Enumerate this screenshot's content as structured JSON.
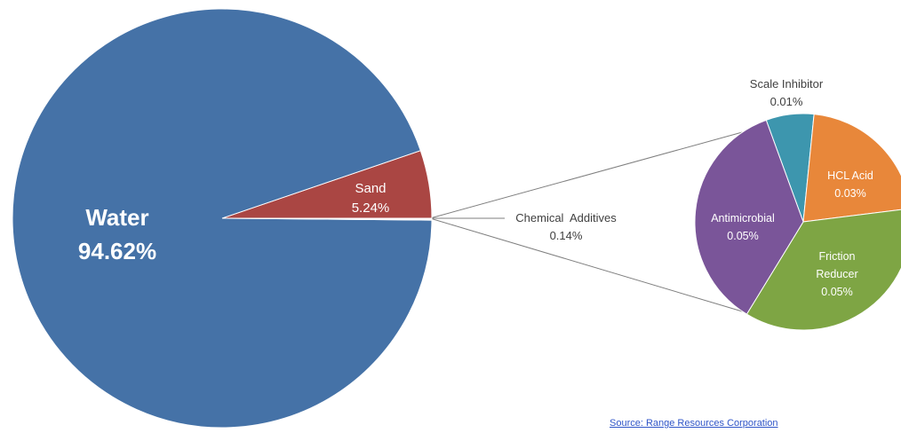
{
  "chart_data": [
    {
      "type": "pie",
      "title": "",
      "slices": [
        {
          "label": "Water",
          "value_text": "94.62%",
          "value": 94.62,
          "color": "#4572a7"
        },
        {
          "label": "Sand",
          "value_text": "5.24%",
          "value": 5.24,
          "color": "#aa4643"
        },
        {
          "label": "Chemical  Additives",
          "value_text": "0.14%",
          "value": 0.14,
          "color": "#ffffff"
        }
      ]
    },
    {
      "type": "pie",
      "title": "",
      "slices": [
        {
          "label": "Scale Inhibitor",
          "value_text": "0.01%",
          "value": 0.01,
          "color": "#3d96ae"
        },
        {
          "label": "HCL Acid",
          "value_text": "0.03%",
          "value": 0.03,
          "color": "#e8873a"
        },
        {
          "label": "Friction Reducer",
          "value_text": "0.05%",
          "value": 0.05,
          "color": "#7ea544"
        },
        {
          "label": "Antimicrobial",
          "value_text": "0.05%",
          "value": 0.05,
          "color": "#7a5599"
        }
      ]
    }
  ],
  "source": {
    "text": "Source: Range Resources Corporation"
  },
  "connector_color": "#7f7f7f"
}
